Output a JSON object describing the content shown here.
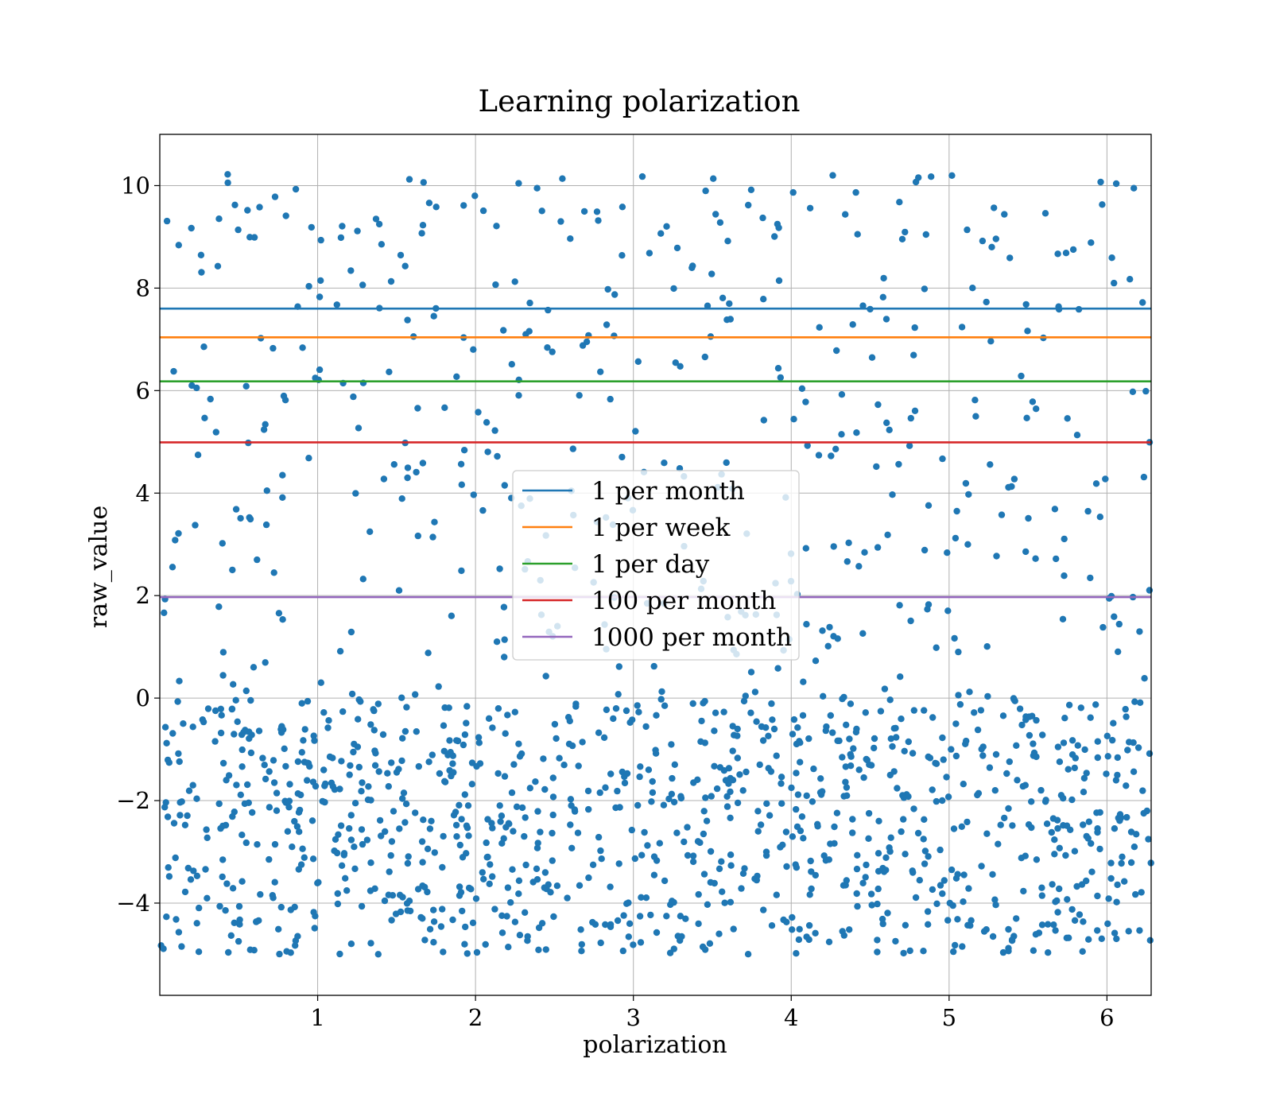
{
  "chart_data": {
    "type": "scatter",
    "title": "Learning polarization",
    "xlabel": "polarization",
    "ylabel": "raw_value",
    "xlim": [
      0,
      6.28
    ],
    "ylim": [
      -5.8,
      11.0
    ],
    "xticks": [
      1,
      2,
      3,
      4,
      5,
      6
    ],
    "yticks": [
      -4,
      -2,
      0,
      2,
      4,
      6,
      8,
      10
    ],
    "ytick_labels": [
      "−4",
      "−2",
      "0",
      "2",
      "4",
      "6",
      "8",
      "10"
    ],
    "grid": true,
    "legend_position": "center",
    "scatter_color": "#1f77b4",
    "scatter_point_count": 1500,
    "scatter_point_distribution": "uniform in x over [0, 6.28]; about 70% of points uniform in y over [-5, 0], the rest spread over [0, 10.2]",
    "scatter_points": [
      [
        0.43,
        10.22
      ],
      [
        0.73,
        9.78
      ],
      [
        2.39,
        9.95
      ],
      [
        4.79,
        10.07
      ],
      [
        5.96,
        10.07
      ],
      [
        6.17,
        9.95
      ],
      [
        2.05,
        9.51
      ],
      [
        2.77,
        9.49
      ],
      [
        3.55,
        9.28
      ],
      [
        5.61,
        9.46
      ],
      [
        1.37,
        9.35
      ],
      [
        0.2,
        9.17
      ],
      [
        3.82,
        9.37
      ],
      [
        4.12,
        9.56
      ],
      [
        5.35,
        9.44
      ],
      [
        1.66,
        9.07
      ],
      [
        2.54,
        9.3
      ],
      [
        0.6,
        8.99
      ],
      [
        4.42,
        9.05
      ],
      [
        5.97,
        9.63
      ]
    ],
    "reference_lines": [
      {
        "name": "1 per month",
        "y": 7.6,
        "color": "#1f77b4"
      },
      {
        "name": "1 per week",
        "y": 7.04,
        "color": "#ff7f0e"
      },
      {
        "name": "1 per day",
        "y": 6.18,
        "color": "#2ca02c"
      },
      {
        "name": "100 per month",
        "y": 4.99,
        "color": "#d62728"
      },
      {
        "name": "1000 per month",
        "y": 1.97,
        "color": "#9467bd"
      }
    ]
  }
}
